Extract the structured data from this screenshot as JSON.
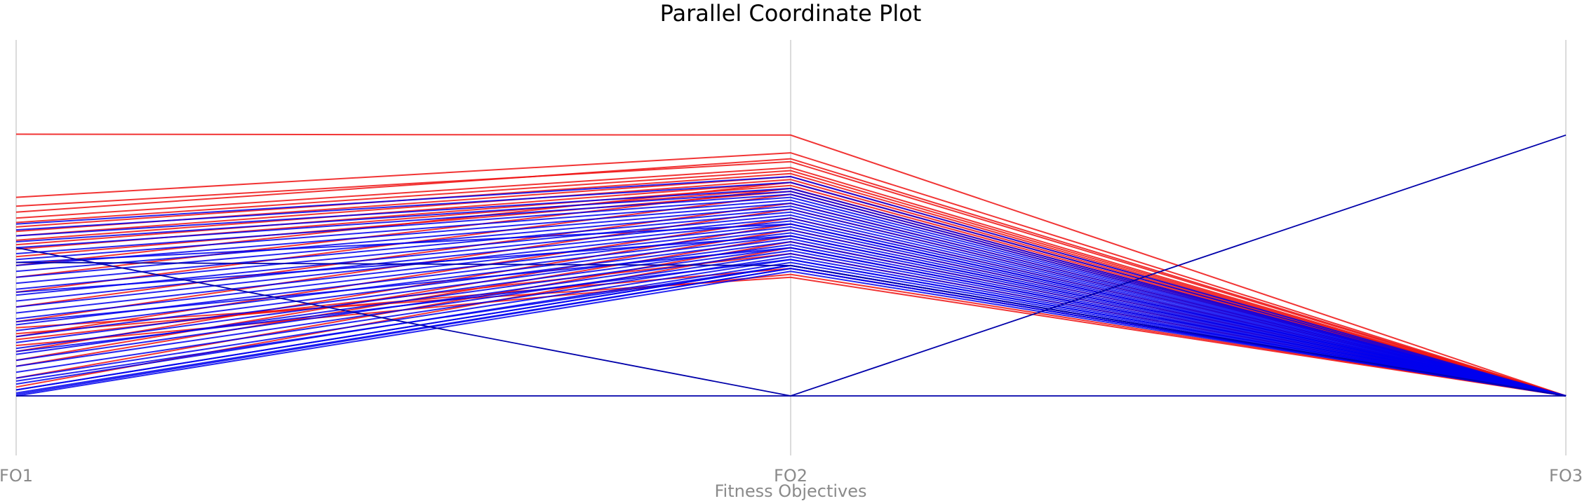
{
  "chart_data": {
    "type": "parallel-coordinates",
    "title": "Parallel Coordinate Plot",
    "xlabel": "Fitness Objectives",
    "ylabel": "",
    "dimensions": [
      "FO1",
      "FO2",
      "FO3"
    ],
    "ylim": [
      0,
      1
    ],
    "grid": false,
    "legend": "none",
    "colors": {
      "group_a": "#ee1111",
      "group_b": "#0000ee",
      "outlier": "#0000aa",
      "axis": "#cfcfcf",
      "label": "#8a8a8a"
    },
    "series": [
      {
        "color_key": "group_a",
        "lines": [
          [
            0.883,
            0.88,
            0.0
          ],
          [
            0.67,
            0.82,
            0.0
          ],
          [
            0.64,
            0.79,
            0.0
          ],
          [
            0.62,
            0.8,
            0.0
          ],
          [
            0.6,
            0.77,
            0.0
          ],
          [
            0.585,
            0.76,
            0.0
          ],
          [
            0.57,
            0.75,
            0.0
          ],
          [
            0.555,
            0.74,
            0.0
          ],
          [
            0.54,
            0.73,
            0.0
          ],
          [
            0.525,
            0.72,
            0.0
          ],
          [
            0.51,
            0.71,
            0.0
          ],
          [
            0.495,
            0.7,
            0.0
          ],
          [
            0.47,
            0.69,
            0.0
          ],
          [
            0.44,
            0.72,
            0.0
          ],
          [
            0.4,
            0.7,
            0.0
          ],
          [
            0.35,
            0.68,
            0.0
          ],
          [
            0.3,
            0.65,
            0.0
          ],
          [
            0.25,
            0.63,
            0.0
          ],
          [
            0.2,
            0.6,
            0.0
          ],
          [
            0.15,
            0.58,
            0.0
          ],
          [
            0.12,
            0.56,
            0.0
          ],
          [
            0.1,
            0.54,
            0.0
          ],
          [
            0.06,
            0.52,
            0.0
          ],
          [
            0.03,
            0.5,
            0.0
          ],
          [
            0.19,
            0.48,
            0.0
          ],
          [
            0.21,
            0.43,
            0.0
          ],
          [
            0.17,
            0.41,
            0.0
          ],
          [
            0.23,
            0.4,
            0.0
          ]
        ]
      },
      {
        "color_key": "group_b",
        "lines": [
          [
            0.58,
            0.74,
            0.0
          ],
          [
            0.56,
            0.72,
            0.0
          ],
          [
            0.54,
            0.7,
            0.0
          ],
          [
            0.52,
            0.69,
            0.0
          ],
          [
            0.5,
            0.68,
            0.0
          ],
          [
            0.48,
            0.67,
            0.0
          ],
          [
            0.46,
            0.66,
            0.0
          ],
          [
            0.44,
            0.65,
            0.0
          ],
          [
            0.42,
            0.64,
            0.0
          ],
          [
            0.4,
            0.63,
            0.0
          ],
          [
            0.38,
            0.62,
            0.0
          ],
          [
            0.36,
            0.61,
            0.0
          ],
          [
            0.34,
            0.6,
            0.0
          ],
          [
            0.32,
            0.59,
            0.0
          ],
          [
            0.3,
            0.58,
            0.0
          ],
          [
            0.28,
            0.57,
            0.0
          ],
          [
            0.26,
            0.56,
            0.0
          ],
          [
            0.24,
            0.55,
            0.0
          ],
          [
            0.22,
            0.54,
            0.0
          ],
          [
            0.2,
            0.53,
            0.0
          ],
          [
            0.18,
            0.52,
            0.0
          ],
          [
            0.16,
            0.51,
            0.0
          ],
          [
            0.14,
            0.5,
            0.0
          ],
          [
            0.12,
            0.49,
            0.0
          ],
          [
            0.1,
            0.48,
            0.0
          ],
          [
            0.08,
            0.47,
            0.0
          ],
          [
            0.06,
            0.46,
            0.0
          ],
          [
            0.04,
            0.45,
            0.0
          ],
          [
            0.02,
            0.44,
            0.0
          ],
          [
            0.005,
            0.43,
            0.0
          ],
          [
            0.0,
            0.42,
            0.0
          ],
          [
            0.05,
            0.44,
            0.0
          ],
          [
            0.15,
            0.46,
            0.0
          ],
          [
            0.25,
            0.5,
            0.0
          ],
          [
            0.35,
            0.54,
            0.0
          ],
          [
            0.45,
            0.58,
            0.0
          ],
          [
            0.02,
            0.44,
            0.0
          ],
          [
            0.01,
            0.43,
            0.0
          ]
        ]
      },
      {
        "color_key": "outlier",
        "lines": [
          [
            0.5,
            0.0,
            0.0
          ],
          [
            0.0,
            0.0,
            0.88
          ],
          [
            0.45,
            0.44,
            0.0
          ]
        ]
      }
    ]
  }
}
